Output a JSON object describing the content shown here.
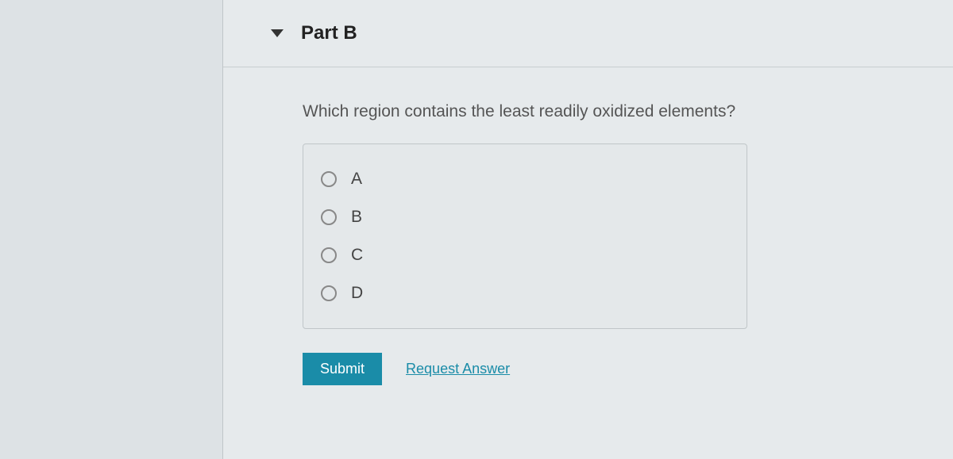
{
  "section": {
    "title": "Part B"
  },
  "question": {
    "text": "Which region contains the least readily oxidized elements?",
    "options": [
      {
        "label": "A"
      },
      {
        "label": "B"
      },
      {
        "label": "C"
      },
      {
        "label": "D"
      }
    ]
  },
  "actions": {
    "submit_label": "Submit",
    "request_label": "Request Answer"
  },
  "colors": {
    "page_bg": "#d8dde0",
    "panel_bg": "#e6eaec",
    "accent": "#1a8ca8",
    "text": "#444",
    "border": "#c0c6c9"
  }
}
